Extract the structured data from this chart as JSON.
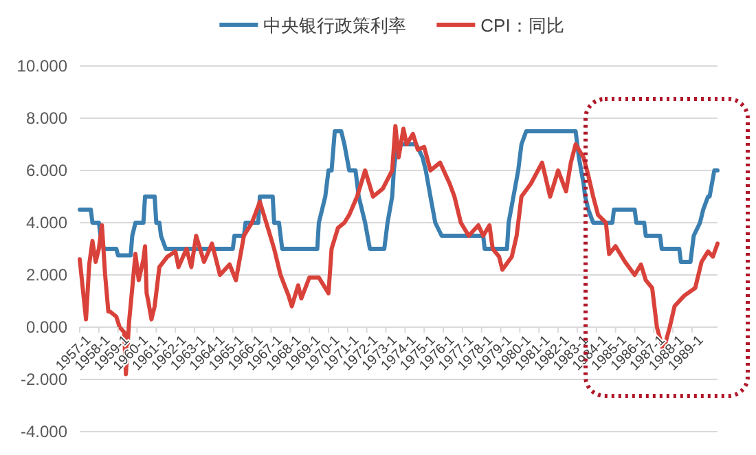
{
  "chart_data": {
    "type": "line",
    "legend": "top",
    "grid": "y",
    "xlim": [
      "1957-01",
      "1990-05"
    ],
    "ylim": [
      -4,
      10
    ],
    "yticks": [
      {
        "value": -4,
        "label": "-4.000"
      },
      {
        "value": -2,
        "label": "-2.000"
      },
      {
        "value": 0,
        "label": "0.000"
      },
      {
        "value": 2,
        "label": "2.000"
      },
      {
        "value": 4,
        "label": "4.000"
      },
      {
        "value": 6,
        "label": "6.000"
      },
      {
        "value": 8,
        "label": "8.000"
      },
      {
        "value": 10,
        "label": "10.000"
      }
    ],
    "xticks": [
      {
        "value": "1957-01",
        "label": "1957-1"
      },
      {
        "value": "1958-01",
        "label": "1958-1"
      },
      {
        "value": "1959-01",
        "label": "1959-1"
      },
      {
        "value": "1960-01",
        "label": "1960-1"
      },
      {
        "value": "1961-01",
        "label": "1961-1"
      },
      {
        "value": "1962-01",
        "label": "1962-1"
      },
      {
        "value": "1963-01",
        "label": "1963-1"
      },
      {
        "value": "1964-01",
        "label": "1964-1"
      },
      {
        "value": "1965-01",
        "label": "1965-1"
      },
      {
        "value": "1966-01",
        "label": "1966-1"
      },
      {
        "value": "1967-01",
        "label": "1967-1"
      },
      {
        "value": "1968-01",
        "label": "1968-1"
      },
      {
        "value": "1969-01",
        "label": "1969-1"
      },
      {
        "value": "1970-01",
        "label": "1970-1"
      },
      {
        "value": "1971-01",
        "label": "1971-1"
      },
      {
        "value": "1972-01",
        "label": "1972-1"
      },
      {
        "value": "1973-01",
        "label": "1973-1"
      },
      {
        "value": "1974-01",
        "label": "1974-1"
      },
      {
        "value": "1975-01",
        "label": "1975-1"
      },
      {
        "value": "1976-01",
        "label": "1976-1"
      },
      {
        "value": "1977-01",
        "label": "1977-1"
      },
      {
        "value": "1978-01",
        "label": "1978-1"
      },
      {
        "value": "1979-01",
        "label": "1979-1"
      },
      {
        "value": "1980-01",
        "label": "1980-1"
      },
      {
        "value": "1981-01",
        "label": "1981-1"
      },
      {
        "value": "1982-01",
        "label": "1982-1"
      },
      {
        "value": "1983-01",
        "label": "1983-1"
      },
      {
        "value": "1984-01",
        "label": "1984-1"
      },
      {
        "value": "1985-01",
        "label": "1985-1"
      },
      {
        "value": "1986-01",
        "label": "1986-1"
      },
      {
        "value": "1987-01",
        "label": "1987-1"
      },
      {
        "value": "1988-01",
        "label": "1988-1"
      },
      {
        "value": "1989-01",
        "label": "1989-1"
      }
    ],
    "series": [
      {
        "name": "中央银行政策利率",
        "color": "#3a7fb0",
        "x": [
          "1957-01",
          "1957-08",
          "1957-09",
          "1958-01",
          "1958-02",
          "1958-03",
          "1958-04",
          "1958-12",
          "1959-01",
          "1959-09",
          "1959-10",
          "1959-12",
          "1960-05",
          "1960-06",
          "1960-12",
          "1961-01",
          "1961-03",
          "1961-04",
          "1961-07",
          "1965-01",
          "1965-02",
          "1965-08",
          "1965-09",
          "1966-05",
          "1966-06",
          "1967-02",
          "1967-03",
          "1967-06",
          "1967-08",
          "1969-06",
          "1969-07",
          "1969-11",
          "1970-01",
          "1970-03",
          "1970-05",
          "1970-09",
          "1970-11",
          "1971-02",
          "1971-06",
          "1971-08",
          "1971-12",
          "1972-03",
          "1972-12",
          "1973-02",
          "1973-05",
          "1973-06",
          "1973-08",
          "1974-08",
          "1974-12",
          "1975-02",
          "1975-05",
          "1975-08",
          "1975-12",
          "1978-02",
          "1978-03",
          "1979-05",
          "1979-06",
          "1979-09",
          "1979-12",
          "1980-02",
          "1980-05",
          "1980-07",
          "1982-12",
          "1983-02",
          "1983-05",
          "1983-06",
          "1983-08",
          "1983-11",
          "1984-11",
          "1984-12",
          "1986-01",
          "1986-02",
          "1986-07",
          "1986-08",
          "1987-05",
          "1987-06",
          "1988-05",
          "1988-06",
          "1988-12",
          "1989-02",
          "1989-06",
          "1989-08",
          "1989-11",
          "1989-12",
          "1990-03",
          "1990-05"
        ],
        "values": [
          4.5,
          4.5,
          4,
          4,
          3.5,
          3.5,
          3,
          3,
          2.75,
          2.75,
          3.5,
          4,
          4,
          5,
          5,
          4,
          4,
          3.5,
          3,
          3,
          3.5,
          3.5,
          4,
          4,
          5,
          5,
          4,
          4,
          3,
          3,
          4,
          5,
          6,
          6,
          7.5,
          7.5,
          7,
          6,
          6,
          5,
          4,
          3,
          3,
          4,
          5,
          6,
          7,
          7,
          6.5,
          6,
          5,
          4,
          3.5,
          3.5,
          3,
          3,
          4,
          5,
          6,
          7,
          7.5,
          7.5,
          7.5,
          6.5,
          5.5,
          5,
          4.5,
          4,
          4,
          4.5,
          4.5,
          4,
          4,
          3.5,
          3.5,
          3,
          3,
          2.5,
          2.5,
          3.5,
          4,
          4.5,
          5,
          5,
          6,
          6
        ]
      },
      {
        "name": "CPI：同比",
        "color": "#d9423a",
        "x": [
          "1957-01",
          "1957-05",
          "1957-07",
          "1957-09",
          "1957-11",
          "1958-01",
          "1958-03",
          "1958-05",
          "1958-07",
          "1958-08",
          "1958-12",
          "1959-02",
          "1959-05",
          "1959-06",
          "1959-08",
          "1959-12",
          "1960-02",
          "1960-05",
          "1960-06",
          "1960-07",
          "1960-08",
          "1960-10",
          "1960-12",
          "1961-03",
          "1961-08",
          "1962-01",
          "1962-03",
          "1962-08",
          "1962-11",
          "1963-02",
          "1963-07",
          "1963-12",
          "1964-05",
          "1964-11",
          "1965-03",
          "1965-08",
          "1966-01",
          "1966-06",
          "1966-11",
          "1967-03",
          "1967-07",
          "1967-12",
          "1968-02",
          "1968-06",
          "1968-08",
          "1969-01",
          "1969-07",
          "1970-01",
          "1970-03",
          "1970-07",
          "1970-11",
          "1971-02",
          "1971-07",
          "1971-12",
          "1972-05",
          "1972-11",
          "1973-05",
          "1973-07",
          "1973-09",
          "1973-12",
          "1974-02",
          "1974-06",
          "1974-09",
          "1975-01",
          "1975-05",
          "1975-11",
          "1976-05",
          "1976-08",
          "1976-12",
          "1977-05",
          "1977-11",
          "1978-02",
          "1978-06",
          "1978-08",
          "1978-12",
          "1979-02",
          "1979-08",
          "1979-11",
          "1980-02",
          "1980-08",
          "1981-03",
          "1981-08",
          "1982-01",
          "1982-06",
          "1982-09",
          "1982-12",
          "1983-05",
          "1983-08",
          "1983-11",
          "1984-02",
          "1984-07",
          "1984-09",
          "1985-01",
          "1985-07",
          "1986-01",
          "1986-05",
          "1986-08",
          "1986-12",
          "1987-03",
          "1987-07",
          "1987-11",
          "1988-02",
          "1988-08",
          "1989-03",
          "1989-07",
          "1989-11",
          "1990-02",
          "1990-05"
        ],
        "values": [
          2.6,
          0.3,
          2.4,
          3.3,
          2.5,
          3.0,
          3.9,
          2.0,
          0.6,
          0.6,
          0.4,
          0.0,
          -0.2,
          -1.8,
          0.2,
          2.8,
          1.8,
          2.6,
          3.1,
          1.3,
          1.0,
          0.3,
          0.8,
          2.3,
          2.7,
          2.9,
          2.3,
          3.0,
          2.3,
          3.5,
          2.5,
          3.2,
          2.0,
          2.4,
          1.8,
          3.5,
          4.0,
          4.8,
          3.8,
          3.0,
          2.0,
          1.2,
          0.8,
          1.6,
          1.1,
          1.9,
          1.9,
          1.3,
          3.0,
          3.8,
          4.0,
          4.3,
          5.0,
          6.0,
          5.0,
          5.3,
          6.0,
          7.7,
          6.5,
          7.6,
          7.0,
          7.4,
          6.8,
          6.9,
          6.0,
          6.3,
          5.5,
          5.0,
          4.0,
          3.5,
          3.9,
          3.5,
          3.9,
          3.0,
          2.7,
          2.2,
          2.7,
          3.5,
          5.0,
          5.5,
          6.3,
          5.0,
          6.0,
          5.2,
          6.3,
          7.0,
          6.5,
          5.8,
          5.0,
          4.3,
          4.0,
          2.8,
          3.1,
          2.5,
          2.0,
          2.4,
          1.8,
          1.5,
          0.0,
          -0.9,
          0.0,
          0.8,
          1.2,
          1.5,
          2.5,
          2.9,
          2.7,
          3.2
        ]
      }
    ]
  }
}
